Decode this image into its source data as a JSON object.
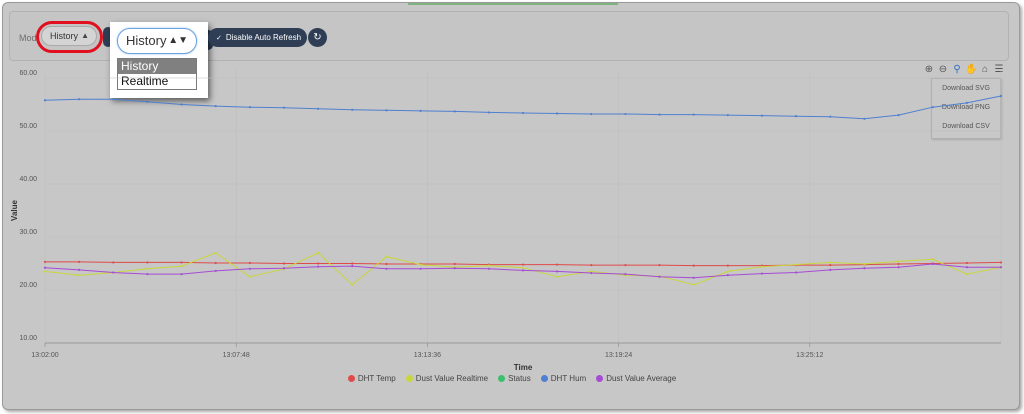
{
  "controls": {
    "mode_label": "Mod",
    "mode_value": "History",
    "dropdown": {
      "selected": "History",
      "options": [
        "History",
        "Realtime"
      ]
    },
    "auto_refresh_label": "Disable Auto Refresh"
  },
  "export_menu": [
    "Download SVG",
    "Download PNG",
    "Download CSV"
  ],
  "chart_data": {
    "type": "line",
    "xlabel": "Time",
    "ylabel": "Value",
    "ylim": [
      10,
      60
    ],
    "yticks": [
      "60.00",
      "50.00",
      "40.00",
      "30.00",
      "20.00",
      "10.00"
    ],
    "xticks": [
      "13:02:00",
      "13:07:48",
      "13:13:36",
      "13:19:24",
      "13:25:12"
    ],
    "grid": true,
    "legend_position": "bottom",
    "colors": {
      "DHT Temp": "#e04a4a",
      "Dust Value Realtime": "#c9d63c",
      "Status": "#3dbf6e",
      "DHT Hum": "#4f7fd0",
      "Dust Value Average": "#a64bd6"
    },
    "x_index": [
      0,
      1,
      2,
      3,
      4,
      5,
      6,
      7,
      8,
      9,
      10,
      11,
      12,
      13,
      14,
      15,
      16,
      17,
      18,
      19,
      20,
      21,
      22,
      23,
      24,
      25,
      26,
      27,
      28
    ],
    "series": [
      {
        "name": "DHT Temp",
        "values": [
          25.3,
          25.3,
          25.2,
          25.2,
          25.2,
          25.1,
          25.1,
          25.0,
          25.0,
          25.0,
          24.9,
          24.9,
          24.9,
          24.8,
          24.8,
          24.8,
          24.7,
          24.7,
          24.7,
          24.6,
          24.6,
          24.6,
          24.7,
          24.7,
          24.8,
          24.9,
          25.0,
          25.1,
          25.2
        ]
      },
      {
        "name": "Dust Value Realtime",
        "values": [
          23.5,
          22.8,
          23.3,
          24.0,
          24.5,
          27.0,
          22.5,
          24.0,
          27.0,
          21.0,
          26.3,
          24.8,
          24.3,
          24.6,
          24.2,
          22.5,
          23.5,
          22.8,
          22.6,
          21.0,
          23.5,
          24.4,
          24.8,
          25.2,
          24.9,
          25.4,
          25.8,
          23.0,
          24.3
        ]
      },
      {
        "name": "DHT Hum",
        "values": [
          55.8,
          56.0,
          56.0,
          55.5,
          55.0,
          54.7,
          54.5,
          54.4,
          54.2,
          54.0,
          53.9,
          53.8,
          53.7,
          53.5,
          53.4,
          53.3,
          53.2,
          53.2,
          53.1,
          53.1,
          53.0,
          52.9,
          52.8,
          52.7,
          52.3,
          53.0,
          54.5,
          55.3,
          56.6
        ]
      },
      {
        "name": "Dust Value Average",
        "values": [
          24.2,
          23.8,
          23.3,
          23.0,
          23.0,
          23.6,
          24.0,
          24.1,
          24.4,
          24.5,
          24.0,
          24.0,
          24.1,
          24.0,
          23.7,
          23.5,
          23.2,
          23.0,
          22.5,
          22.3,
          22.8,
          23.1,
          23.3,
          23.8,
          24.1,
          24.3,
          24.9,
          24.3,
          24.3
        ]
      }
    ]
  }
}
